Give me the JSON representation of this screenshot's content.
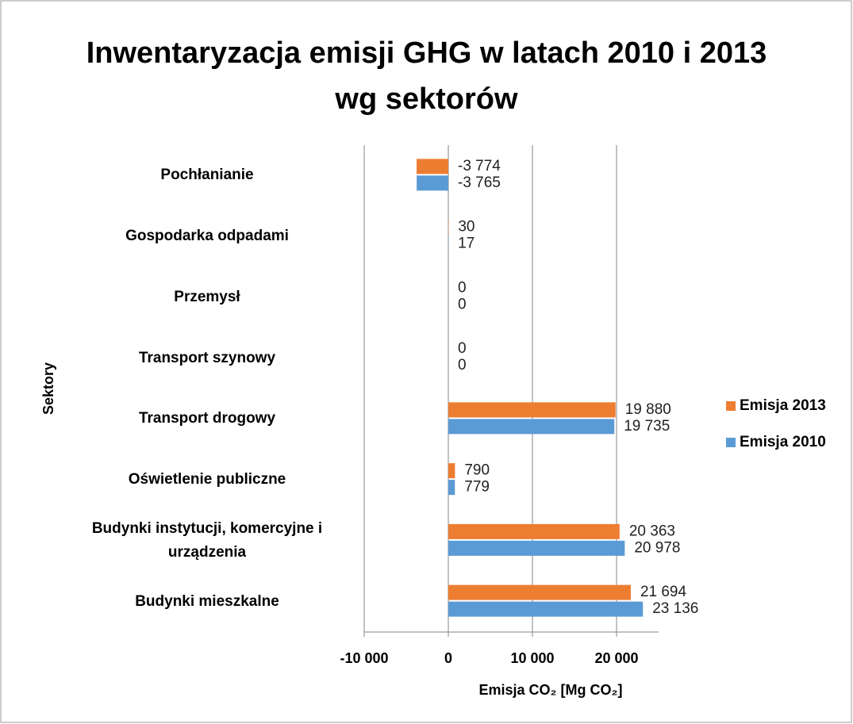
{
  "chart_data": {
    "type": "bar",
    "orientation": "horizontal",
    "title": "Inwentaryzacja emisji GHG w latach 2010 i 2013 wg sektorów",
    "x_label": "Emisja CO₂ [Mg CO₂]",
    "y_label": "Sektory",
    "categories": [
      "Pochłanianie",
      "Gospodarka odpadami",
      "Przemysł",
      "Transport szynowy",
      "Transport drogowy",
      "Oświetlenie publiczne",
      "Budynki instytucji, komercyjne i urządzenia",
      "Budynki mieszkalne"
    ],
    "series": [
      {
        "name": "Emisja 2013",
        "color": "#ed7d31",
        "values": [
          -3774,
          30,
          0,
          0,
          19880,
          790,
          20363,
          21694
        ],
        "value_labels": [
          "-3 774",
          "30",
          "0",
          "0",
          "19 880",
          "790",
          "20 363",
          "21 694"
        ]
      },
      {
        "name": "Emisja 2010",
        "color": "#5b9bd5",
        "values": [
          -3765,
          17,
          0,
          0,
          19735,
          779,
          20978,
          23136
        ],
        "value_labels": [
          "-3 765",
          "17",
          "0",
          "0",
          "19 735",
          "779",
          "20 978",
          "23 136"
        ]
      }
    ],
    "xlim": [
      -10000,
      25000
    ],
    "xticks": [
      {
        "value": -10000,
        "label": "-10 000"
      },
      0,
      {
        "value": 10000,
        "label": "10 000"
      },
      {
        "value": 20000,
        "label": "20 000"
      }
    ],
    "grid": true,
    "legend": "right"
  }
}
